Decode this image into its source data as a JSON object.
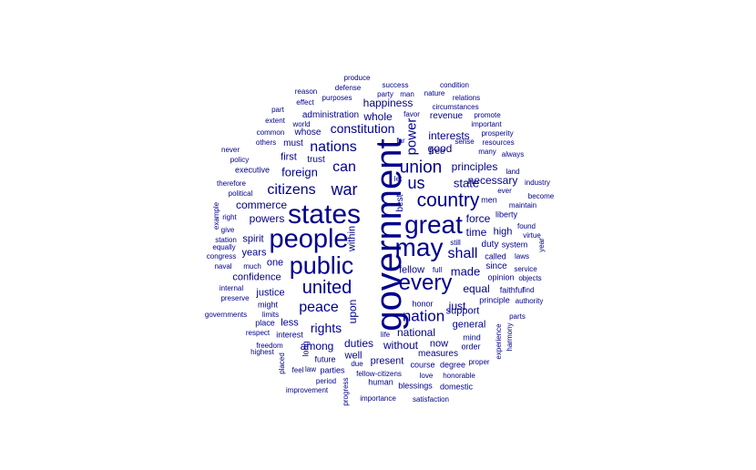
{
  "cloud": {
    "text_color": "#00008B",
    "background_color": "#FFFFFF",
    "words": [
      {
        "text": "government",
        "vertical": true
      },
      {
        "text": "states",
        "vertical": false
      },
      {
        "text": "people",
        "vertical": false
      },
      {
        "text": "great",
        "vertical": false
      },
      {
        "text": "may",
        "vertical": false
      },
      {
        "text": "public",
        "vertical": false
      },
      {
        "text": "every",
        "vertical": false
      },
      {
        "text": "country",
        "vertical": false
      },
      {
        "text": "united",
        "vertical": false
      },
      {
        "text": "union",
        "vertical": false
      },
      {
        "text": "war",
        "vertical": false
      },
      {
        "text": "nation",
        "vertical": false
      },
      {
        "text": "citizens",
        "vertical": false
      },
      {
        "text": "peace",
        "vertical": false
      },
      {
        "text": "nations",
        "vertical": false
      },
      {
        "text": "can",
        "vertical": false
      },
      {
        "text": "us",
        "vertical": false
      },
      {
        "text": "shall",
        "vertical": false
      },
      {
        "text": "power",
        "vertical": true
      },
      {
        "text": "constitution",
        "vertical": false
      },
      {
        "text": "foreign",
        "vertical": false
      },
      {
        "text": "rights",
        "vertical": false
      },
      {
        "text": "state",
        "vertical": false
      },
      {
        "text": "made",
        "vertical": false
      },
      {
        "text": "good",
        "vertical": false
      },
      {
        "text": "interests",
        "vertical": false
      },
      {
        "text": "principles",
        "vertical": false
      },
      {
        "text": "commerce",
        "vertical": false
      },
      {
        "text": "powers",
        "vertical": false
      },
      {
        "text": "national",
        "vertical": false
      },
      {
        "text": "force",
        "vertical": false
      },
      {
        "text": "time",
        "vertical": false
      },
      {
        "text": "equal",
        "vertical": false
      },
      {
        "text": "fellow",
        "vertical": false
      },
      {
        "text": "necessary",
        "vertical": false
      },
      {
        "text": "happiness",
        "vertical": false
      },
      {
        "text": "whole",
        "vertical": false
      },
      {
        "text": "high",
        "vertical": false
      },
      {
        "text": "just",
        "vertical": false
      },
      {
        "text": "upon",
        "vertical": true
      },
      {
        "text": "within",
        "vertical": true
      },
      {
        "text": "duties",
        "vertical": false
      },
      {
        "text": "without",
        "vertical": false
      },
      {
        "text": "among",
        "vertical": false
      },
      {
        "text": "justice",
        "vertical": false
      },
      {
        "text": "confidence",
        "vertical": false
      },
      {
        "text": "general",
        "vertical": false
      },
      {
        "text": "support",
        "vertical": false
      },
      {
        "text": "present",
        "vertical": false
      },
      {
        "text": "well",
        "vertical": false
      },
      {
        "text": "less",
        "vertical": false
      },
      {
        "text": "first",
        "vertical": false
      },
      {
        "text": "spirit",
        "vertical": false
      },
      {
        "text": "years",
        "vertical": false
      },
      {
        "text": "one",
        "vertical": false
      },
      {
        "text": "since",
        "vertical": false
      },
      {
        "text": "duty",
        "vertical": false
      },
      {
        "text": "now",
        "vertical": false
      },
      {
        "text": "measures",
        "vertical": false
      },
      {
        "text": "trust",
        "vertical": false
      },
      {
        "text": "best",
        "vertical": true
      },
      {
        "text": "administration",
        "vertical": false
      },
      {
        "text": "revenue",
        "vertical": false
      },
      {
        "text": "whose",
        "vertical": false
      },
      {
        "text": "must",
        "vertical": false
      },
      {
        "text": "executive",
        "vertical": false
      },
      {
        "text": "free",
        "vertical": false
      },
      {
        "text": "liberty",
        "vertical": false
      },
      {
        "text": "men",
        "vertical": false
      },
      {
        "text": "principle",
        "vertical": false
      },
      {
        "text": "faithful",
        "vertical": false
      },
      {
        "text": "interest",
        "vertical": false
      },
      {
        "text": "long",
        "vertical": true
      },
      {
        "text": "honor",
        "vertical": false
      },
      {
        "text": "might",
        "vertical": false
      },
      {
        "text": "opinion",
        "vertical": false
      },
      {
        "text": "system",
        "vertical": false
      },
      {
        "text": "called",
        "vertical": false
      },
      {
        "text": "mind",
        "vertical": false
      },
      {
        "text": "order",
        "vertical": false
      },
      {
        "text": "course",
        "vertical": false
      },
      {
        "text": "degree",
        "vertical": false
      },
      {
        "text": "fellow-citizens",
        "vertical": false
      },
      {
        "text": "future",
        "vertical": false
      },
      {
        "text": "parties",
        "vertical": false
      },
      {
        "text": "human",
        "vertical": false
      },
      {
        "text": "blessings",
        "vertical": false
      },
      {
        "text": "domestic",
        "vertical": false
      },
      {
        "text": "importance",
        "vertical": false
      },
      {
        "text": "satisfaction",
        "vertical": false
      },
      {
        "text": "improvement",
        "vertical": false
      },
      {
        "text": "progress",
        "vertical": true
      },
      {
        "text": "period",
        "vertical": false
      },
      {
        "text": "due",
        "vertical": false
      },
      {
        "text": "love",
        "vertical": false
      },
      {
        "text": "honorable",
        "vertical": false
      },
      {
        "text": "proper",
        "vertical": false
      },
      {
        "text": "feel",
        "vertical": false
      },
      {
        "text": "law",
        "vertical": false
      },
      {
        "text": "placed",
        "vertical": true
      },
      {
        "text": "freedom",
        "vertical": false
      },
      {
        "text": "highest",
        "vertical": false
      },
      {
        "text": "respect",
        "vertical": false
      },
      {
        "text": "place",
        "vertical": false
      },
      {
        "text": "life",
        "vertical": false
      },
      {
        "text": "governments",
        "vertical": false
      },
      {
        "text": "limits",
        "vertical": false
      },
      {
        "text": "preserve",
        "vertical": false
      },
      {
        "text": "internal",
        "vertical": false
      },
      {
        "text": "naval",
        "vertical": false
      },
      {
        "text": "congress",
        "vertical": false
      },
      {
        "text": "equally",
        "vertical": false
      },
      {
        "text": "station",
        "vertical": false
      },
      {
        "text": "give",
        "vertical": false
      },
      {
        "text": "right",
        "vertical": false
      },
      {
        "text": "example",
        "vertical": true
      },
      {
        "text": "political",
        "vertical": false
      },
      {
        "text": "therefore",
        "vertical": false
      },
      {
        "text": "policy",
        "vertical": false
      },
      {
        "text": "never",
        "vertical": false
      },
      {
        "text": "others",
        "vertical": false
      },
      {
        "text": "common",
        "vertical": false
      },
      {
        "text": "extent",
        "vertical": false
      },
      {
        "text": "part",
        "vertical": false
      },
      {
        "text": "world",
        "vertical": false
      },
      {
        "text": "effect",
        "vertical": false
      },
      {
        "text": "reason",
        "vertical": false
      },
      {
        "text": "purposes",
        "vertical": false
      },
      {
        "text": "defense",
        "vertical": false
      },
      {
        "text": "produce",
        "vertical": false
      },
      {
        "text": "success",
        "vertical": false
      },
      {
        "text": "party",
        "vertical": false
      },
      {
        "text": "man",
        "vertical": false
      },
      {
        "text": "nature",
        "vertical": false
      },
      {
        "text": "condition",
        "vertical": false
      },
      {
        "text": "relations",
        "vertical": false
      },
      {
        "text": "circumstances",
        "vertical": false
      },
      {
        "text": "far",
        "vertical": false
      },
      {
        "text": "favor",
        "vertical": false
      },
      {
        "text": "promote",
        "vertical": false
      },
      {
        "text": "important",
        "vertical": false
      },
      {
        "text": "prosperity",
        "vertical": false
      },
      {
        "text": "sense",
        "vertical": false
      },
      {
        "text": "resources",
        "vertical": false
      },
      {
        "text": "many",
        "vertical": false
      },
      {
        "text": "always",
        "vertical": false
      },
      {
        "text": "land",
        "vertical": false
      },
      {
        "text": "ever",
        "vertical": false
      },
      {
        "text": "industry",
        "vertical": false
      },
      {
        "text": "become",
        "vertical": false
      },
      {
        "text": "maintain",
        "vertical": false
      },
      {
        "text": "let",
        "vertical": false
      },
      {
        "text": "found",
        "vertical": false
      },
      {
        "text": "virtue",
        "vertical": false
      },
      {
        "text": "year",
        "vertical": true
      },
      {
        "text": "laws",
        "vertical": false
      },
      {
        "text": "still",
        "vertical": false
      },
      {
        "text": "full",
        "vertical": false
      },
      {
        "text": "service",
        "vertical": false
      },
      {
        "text": "objects",
        "vertical": false
      },
      {
        "text": "authority",
        "vertical": false
      },
      {
        "text": "parts",
        "vertical": false
      },
      {
        "text": "harmony",
        "vertical": true
      },
      {
        "text": "experience",
        "vertical": true
      },
      {
        "text": "much",
        "vertical": false
      },
      {
        "text": "find",
        "vertical": false
      }
    ]
  }
}
